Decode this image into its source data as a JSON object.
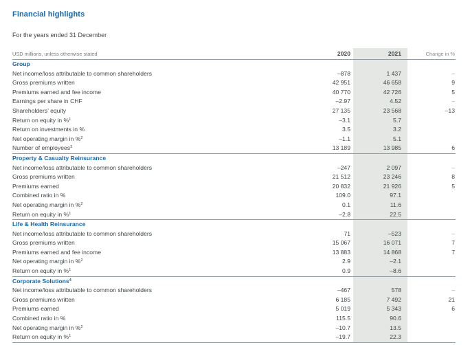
{
  "page": {
    "title": "Financial highlights",
    "subtitle": "For the years ended 31 December"
  },
  "table": {
    "unit_label": "USD millions, unless otherwise stated",
    "columns": {
      "y2020": "2020",
      "y2021": "2021",
      "change": "Change in %"
    },
    "colors": {
      "accent_blue": "#1368b4",
      "highlight_band": "#e4e7e4",
      "rule_line": "#92a0a4",
      "body_text": "#3e4447"
    },
    "sections": [
      {
        "title": "Group",
        "sup": "",
        "rows": [
          {
            "label": "Net income/loss attributable to common shareholders",
            "sup": "",
            "v2020": "–878",
            "v2021": "1 437",
            "change": "–"
          },
          {
            "label": "Gross premiums written",
            "sup": "",
            "v2020": "42 951",
            "v2021": "46 658",
            "change": "9"
          },
          {
            "label": "Premiums earned and fee income",
            "sup": "",
            "v2020": "40 770",
            "v2021": "42 726",
            "change": "5"
          },
          {
            "label": "Earnings per share in CHF",
            "sup": "",
            "v2020": "–2.97",
            "v2021": "4.52",
            "change": "–"
          },
          {
            "label": "Shareholders’ equity",
            "sup": "",
            "v2020": "27 135",
            "v2021": "23 568",
            "change": "–13"
          },
          {
            "label": "Return on equity in %",
            "sup": "1",
            "v2020": "–3.1",
            "v2021": "5.7",
            "change": ""
          },
          {
            "label": "Return on investments in %",
            "sup": "",
            "v2020": "3.5",
            "v2021": "3.2",
            "change": ""
          },
          {
            "label": "Net operating margin in %",
            "sup": "2",
            "v2020": "–1.1",
            "v2021": "5.1",
            "change": ""
          },
          {
            "label": "Number of employees",
            "sup": "3",
            "v2020": "13 189",
            "v2021": "13 985",
            "change": "6"
          }
        ]
      },
      {
        "title": "Property & Casualty Reinsurance",
        "sup": "",
        "rows": [
          {
            "label": "Net income/loss attributable to common shareholders",
            "sup": "",
            "v2020": "–247",
            "v2021": "2 097",
            "change": "–"
          },
          {
            "label": "Gross premiums written",
            "sup": "",
            "v2020": "21 512",
            "v2021": "23 246",
            "change": "8"
          },
          {
            "label": "Premiums earned",
            "sup": "",
            "v2020": "20 832",
            "v2021": "21 926",
            "change": "5"
          },
          {
            "label": "Combined ratio in %",
            "sup": "",
            "v2020": "109.0",
            "v2021": "97.1",
            "change": ""
          },
          {
            "label": "Net operating margin in %",
            "sup": "2",
            "v2020": "0.1",
            "v2021": "11.6",
            "change": ""
          },
          {
            "label": "Return on equity in %",
            "sup": "1",
            "v2020": "–2.8",
            "v2021": "22.5",
            "change": ""
          }
        ]
      },
      {
        "title": "Life & Health Reinsurance",
        "sup": "",
        "rows": [
          {
            "label": "Net income/loss attributable to common shareholders",
            "sup": "",
            "v2020": "71",
            "v2021": "–523",
            "change": "–"
          },
          {
            "label": "Gross premiums written",
            "sup": "",
            "v2020": "15 067",
            "v2021": "16 071",
            "change": "7"
          },
          {
            "label": "Premiums earned and fee income",
            "sup": "",
            "v2020": "13 883",
            "v2021": "14 868",
            "change": "7"
          },
          {
            "label": "Net operating margin in %",
            "sup": "2",
            "v2020": "2.9",
            "v2021": "–2.1",
            "change": ""
          },
          {
            "label": "Return on equity in %",
            "sup": "1",
            "v2020": "0.9",
            "v2021": "–8.6",
            "change": ""
          }
        ]
      },
      {
        "title": "Corporate Solutions",
        "sup": "4",
        "rows": [
          {
            "label": "Net income/loss attributable to common shareholders",
            "sup": "",
            "v2020": "–467",
            "v2021": "578",
            "change": "–"
          },
          {
            "label": "Gross premiums written",
            "sup": "",
            "v2020": "6 185",
            "v2021": "7 492",
            "change": "21"
          },
          {
            "label": "Premiums earned",
            "sup": "",
            "v2020": "5 019",
            "v2021": "5 343",
            "change": "6"
          },
          {
            "label": "Combined ratio in %",
            "sup": "",
            "v2020": "115.5",
            "v2021": "90.6",
            "change": ""
          },
          {
            "label": "Net operating margin in %",
            "sup": "2",
            "v2020": "–10.7",
            "v2021": "13.5",
            "change": ""
          },
          {
            "label": "Return on equity in %",
            "sup": "1",
            "v2020": "–19.7",
            "v2021": "22.3",
            "change": ""
          }
        ]
      }
    ]
  }
}
